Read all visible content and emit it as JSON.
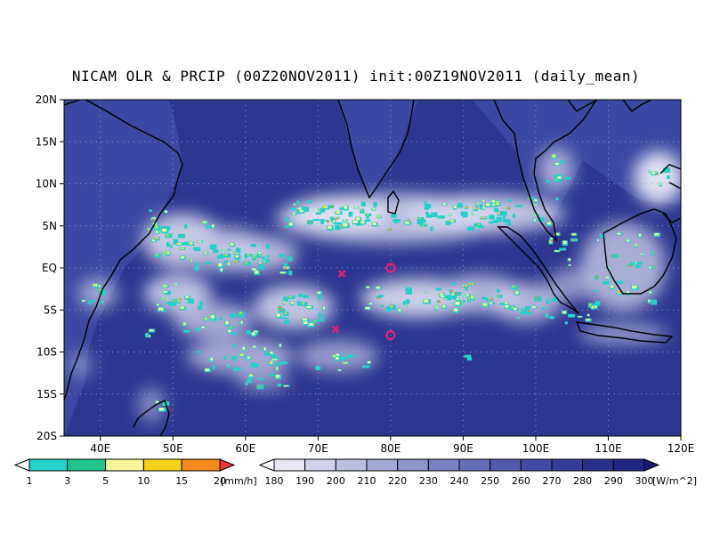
{
  "title": "NICAM OLR & PRCIP (00Z20NOV2011) init:00Z19NOV2011 (daily_mean)",
  "map": {
    "lon_range": [
      35,
      120
    ],
    "lat_range": [
      -20,
      20
    ],
    "lat_ticks": [
      "20N",
      "15N",
      "10N",
      "5N",
      "EQ",
      "5S",
      "10S",
      "15S",
      "20S"
    ],
    "lon_ticks": [
      "40E",
      "50E",
      "60E",
      "70E",
      "80E",
      "90E",
      "100E",
      "110E",
      "120E"
    ],
    "markers": [
      {
        "symbol": "x",
        "lon": 73.3,
        "lat": -0.7
      },
      {
        "symbol": "o",
        "lon": 80,
        "lat": 0
      },
      {
        "symbol": "x",
        "lon": 72.4,
        "lat": -7.3
      },
      {
        "symbol": "o",
        "lon": 80,
        "lat": -8
      }
    ],
    "colors": {
      "ocean": "#2d3790",
      "land": "#3f4ca3",
      "coast": "#000000",
      "marker": "#e0207a"
    }
  },
  "precip_colorbar": {
    "labels": [
      "1",
      "3",
      "5",
      "10",
      "15",
      "20"
    ],
    "unit": "[mm/h]",
    "colors": [
      "#ffffff",
      "#22d1c8",
      "#20c48a",
      "#f6f59a",
      "#f5d21a",
      "#f5881d",
      "#e8363d"
    ]
  },
  "olr_colorbar": {
    "labels": [
      "180",
      "190",
      "200",
      "210",
      "220",
      "230",
      "240",
      "250",
      "260",
      "270",
      "280",
      "290",
      "300"
    ],
    "unit": "[W/m^2]",
    "colors": [
      "#ffffff",
      "#e6e6f2",
      "#d2d3ea",
      "#bcbee0",
      "#a5a9d6",
      "#8f94cb",
      "#7a80c1",
      "#676db7",
      "#5459ad",
      "#4448a3",
      "#373b98",
      "#2c2f8d",
      "#222584",
      "#181a6e"
    ]
  }
}
